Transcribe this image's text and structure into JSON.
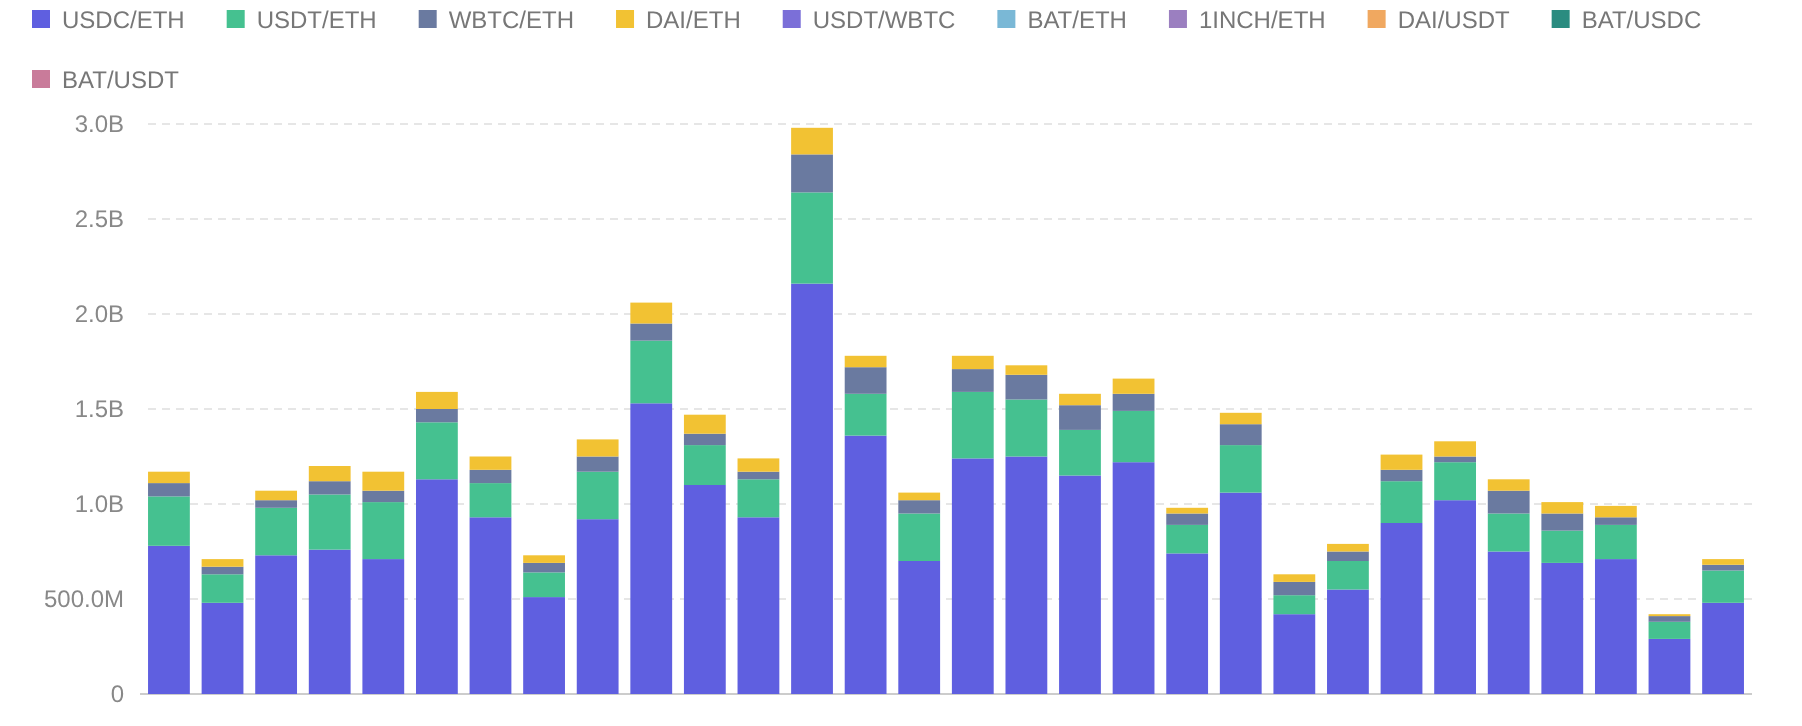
{
  "chart_data": {
    "type": "bar",
    "stacked": true,
    "legend": "top",
    "grid": "y",
    "categories": [
      null,
      null,
      null,
      null,
      null,
      null,
      null,
      null,
      null,
      null,
      null,
      null,
      null,
      null,
      null,
      null,
      null,
      null,
      null,
      null,
      null,
      null,
      null,
      null,
      null,
      null,
      null,
      null,
      null,
      null
    ],
    "ylim": [
      0,
      3000000000
    ],
    "yticks": [
      0,
      {
        "value": 500000000,
        "label": "500.0M"
      },
      {
        "value": 1000000000,
        "label": "1.0B"
      },
      {
        "value": 1500000000,
        "label": "1.5B"
      },
      {
        "value": 2000000000,
        "label": "2.0B"
      },
      {
        "value": 2500000000,
        "label": "2.5B"
      },
      {
        "value": 3000000000,
        "label": "3.0B"
      }
    ],
    "series": [
      {
        "name": "USDC/ETH",
        "color": "#5f5fe0",
        "values": [
          780000000,
          480000000,
          730000000,
          760000000,
          710000000,
          1130000000,
          930000000,
          510000000,
          920000000,
          1530000000,
          1100000000,
          930000000,
          2160000000,
          1360000000,
          700000000,
          1240000000,
          1250000000,
          1150000000,
          1220000000,
          740000000,
          1060000000,
          420000000,
          550000000,
          900000000,
          1020000000,
          750000000,
          690000000,
          710000000,
          290000000,
          480000000
        ]
      },
      {
        "name": "USDT/ETH",
        "color": "#45c190",
        "values": [
          260000000,
          150000000,
          250000000,
          290000000,
          300000000,
          300000000,
          180000000,
          130000000,
          250000000,
          330000000,
          210000000,
          200000000,
          480000000,
          220000000,
          250000000,
          350000000,
          300000000,
          240000000,
          270000000,
          150000000,
          250000000,
          100000000,
          150000000,
          220000000,
          200000000,
          200000000,
          170000000,
          180000000,
          90000000,
          170000000
        ]
      },
      {
        "name": "WBTC/ETH",
        "color": "#6a7aa0",
        "values": [
          70000000,
          40000000,
          40000000,
          70000000,
          60000000,
          70000000,
          70000000,
          50000000,
          80000000,
          90000000,
          60000000,
          40000000,
          200000000,
          140000000,
          70000000,
          120000000,
          130000000,
          130000000,
          90000000,
          60000000,
          110000000,
          70000000,
          50000000,
          60000000,
          30000000,
          120000000,
          90000000,
          40000000,
          30000000,
          30000000
        ]
      },
      {
        "name": "DAI/ETH",
        "color": "#f2c233",
        "values": [
          60000000,
          40000000,
          50000000,
          80000000,
          100000000,
          90000000,
          70000000,
          40000000,
          90000000,
          110000000,
          100000000,
          70000000,
          140000000,
          60000000,
          40000000,
          70000000,
          50000000,
          60000000,
          80000000,
          30000000,
          60000000,
          40000000,
          40000000,
          80000000,
          80000000,
          60000000,
          60000000,
          60000000,
          10000000,
          30000000
        ]
      },
      {
        "name": "USDT/WBTC",
        "color": "#7b6fd8",
        "values": [
          0,
          0,
          0,
          0,
          0,
          0,
          0,
          0,
          0,
          0,
          0,
          0,
          0,
          0,
          0,
          0,
          0,
          0,
          0,
          0,
          0,
          0,
          0,
          0,
          0,
          0,
          0,
          0,
          0,
          0
        ]
      },
      {
        "name": "BAT/ETH",
        "color": "#7ab8d6",
        "values": [
          0,
          0,
          0,
          0,
          0,
          0,
          0,
          0,
          0,
          0,
          0,
          0,
          0,
          0,
          0,
          0,
          0,
          0,
          0,
          0,
          0,
          0,
          0,
          0,
          0,
          0,
          0,
          0,
          0,
          0
        ]
      },
      {
        "name": "1INCH/ETH",
        "color": "#9b7fc0",
        "values": [
          0,
          0,
          0,
          0,
          0,
          0,
          0,
          0,
          0,
          0,
          0,
          0,
          0,
          0,
          0,
          0,
          0,
          0,
          0,
          0,
          0,
          0,
          0,
          0,
          0,
          0,
          0,
          0,
          0,
          0
        ]
      },
      {
        "name": "DAI/USDT",
        "color": "#f0a860",
        "values": [
          0,
          0,
          0,
          0,
          0,
          0,
          0,
          0,
          0,
          0,
          0,
          0,
          0,
          0,
          0,
          0,
          0,
          0,
          0,
          0,
          0,
          0,
          0,
          0,
          0,
          0,
          0,
          0,
          0,
          0
        ]
      },
      {
        "name": "BAT/USDC",
        "color": "#2a8c80",
        "values": [
          0,
          0,
          0,
          0,
          0,
          0,
          0,
          0,
          0,
          0,
          0,
          0,
          0,
          0,
          0,
          0,
          0,
          0,
          0,
          0,
          0,
          0,
          0,
          0,
          0,
          0,
          0,
          0,
          0,
          0
        ]
      },
      {
        "name": "BAT/USDT",
        "color": "#c97b9a",
        "values": [
          0,
          0,
          0,
          0,
          0,
          0,
          0,
          0,
          0,
          0,
          0,
          0,
          0,
          0,
          0,
          0,
          0,
          0,
          0,
          0,
          0,
          0,
          0,
          0,
          0,
          0,
          0,
          0,
          0,
          0
        ]
      }
    ]
  }
}
